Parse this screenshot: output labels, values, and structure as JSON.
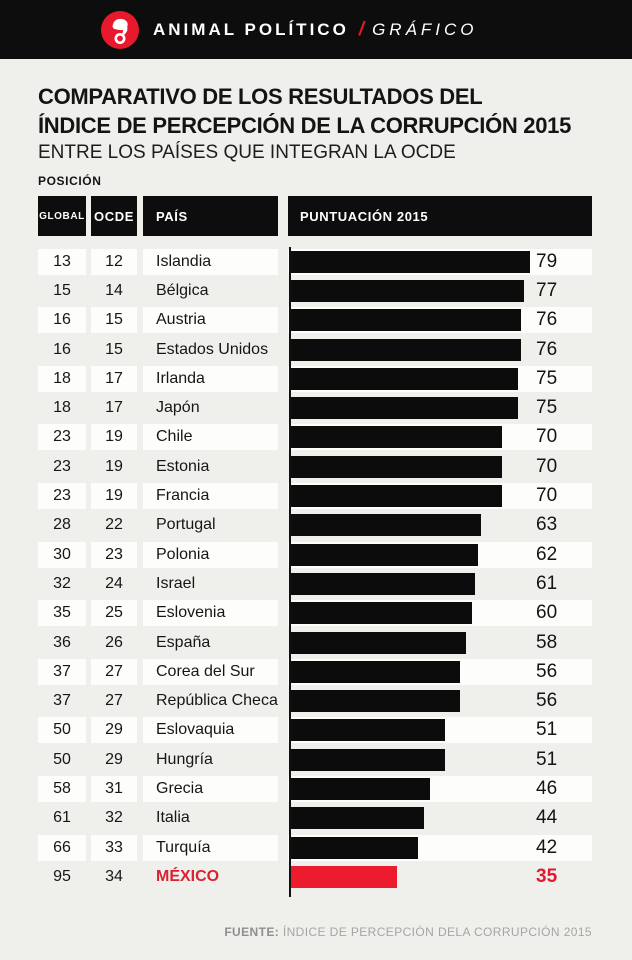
{
  "header": {
    "brand": "ANIMAL POLÍTICO",
    "separator": "/",
    "section": "GRÁFICO",
    "logo_icon": "elephant-on-wheel-logo"
  },
  "title": {
    "line1": "COMPARATIVO DE LOS RESULTADOS DEL",
    "line2": "ÍNDICE DE PERCEPCIÓN DE LA CORRUPCIÓN 2015",
    "subtitle": "ENTRE LOS PAÍSES QUE INTEGRAN LA OCDE"
  },
  "table": {
    "position_label": "POSICIÓN",
    "columns": {
      "global": "GLOBAL",
      "ocde": "OCDE",
      "pais": "PAÍS",
      "score": "PUNTUACIÓN 2015"
    }
  },
  "chart_data": {
    "type": "bar",
    "orientation": "horizontal",
    "title": "COMPARATIVO DE LOS RESULTADOS DEL ÍNDICE DE PERCEPCIÓN DE LA CORRUPCIÓN 2015",
    "subtitle": "ENTRE LOS PAÍSES QUE INTEGRAN LA OCDE",
    "xlabel": "PUNTUACIÓN 2015",
    "ylabel": "PAÍS",
    "xlim": [
      0,
      100
    ],
    "grid": false,
    "legend": false,
    "rows": [
      {
        "global": 13,
        "ocde": 12,
        "country": "Islandia",
        "score": 79,
        "highlight": false
      },
      {
        "global": 15,
        "ocde": 14,
        "country": "Bélgica",
        "score": 77,
        "highlight": false
      },
      {
        "global": 16,
        "ocde": 15,
        "country": "Austria",
        "score": 76,
        "highlight": false
      },
      {
        "global": 16,
        "ocde": 15,
        "country": "Estados Unidos",
        "score": 76,
        "highlight": false
      },
      {
        "global": 18,
        "ocde": 17,
        "country": "Irlanda",
        "score": 75,
        "highlight": false
      },
      {
        "global": 18,
        "ocde": 17,
        "country": "Japón",
        "score": 75,
        "highlight": false
      },
      {
        "global": 23,
        "ocde": 19,
        "country": "Chile",
        "score": 70,
        "highlight": false
      },
      {
        "global": 23,
        "ocde": 19,
        "country": "Estonia",
        "score": 70,
        "highlight": false
      },
      {
        "global": 23,
        "ocde": 19,
        "country": "Francia",
        "score": 70,
        "highlight": false
      },
      {
        "global": 28,
        "ocde": 22,
        "country": "Portugal",
        "score": 63,
        "highlight": false
      },
      {
        "global": 30,
        "ocde": 23,
        "country": "Polonia",
        "score": 62,
        "highlight": false
      },
      {
        "global": 32,
        "ocde": 24,
        "country": "Israel",
        "score": 61,
        "highlight": false
      },
      {
        "global": 35,
        "ocde": 25,
        "country": "Eslovenia",
        "score": 60,
        "highlight": false
      },
      {
        "global": 36,
        "ocde": 26,
        "country": "España",
        "score": 58,
        "highlight": false
      },
      {
        "global": 37,
        "ocde": 27,
        "country": "Corea del Sur",
        "score": 56,
        "highlight": false
      },
      {
        "global": 37,
        "ocde": 27,
        "country": "República Checa",
        "score": 56,
        "highlight": false
      },
      {
        "global": 50,
        "ocde": 29,
        "country": "Eslovaquia",
        "score": 51,
        "highlight": false
      },
      {
        "global": 50,
        "ocde": 29,
        "country": "Hungría",
        "score": 51,
        "highlight": false
      },
      {
        "global": 58,
        "ocde": 31,
        "country": "Grecia",
        "score": 46,
        "highlight": false
      },
      {
        "global": 61,
        "ocde": 32,
        "country": "Italia",
        "score": 44,
        "highlight": false
      },
      {
        "global": 66,
        "ocde": 33,
        "country": "Turquía",
        "score": 42,
        "highlight": false
      },
      {
        "global": 95,
        "ocde": 34,
        "country": "MÉXICO",
        "score": 35,
        "highlight": true
      }
    ]
  },
  "footer": {
    "source_label": "FUENTE:",
    "source_text": "ÍNDICE DE PERCEPCIÓN DELA CORRUPCIÓN 2015"
  },
  "colors": {
    "background": "#efefec",
    "bar_black": "#0c0c0c",
    "topbar_black": "#0d0d0d",
    "accent_red": "#e8192d",
    "highlight_bar_red": "#ed1b2e",
    "row_white": "#fdfdfc",
    "footer_gray": "#a5a5a3"
  }
}
